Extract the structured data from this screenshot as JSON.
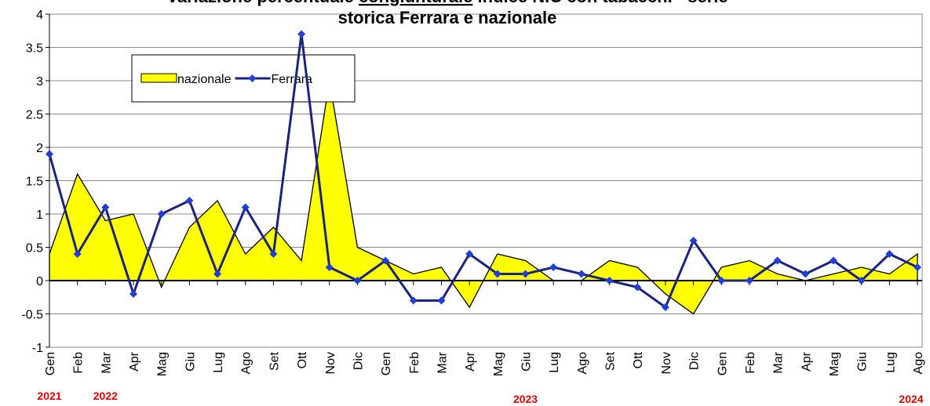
{
  "chart_data": {
    "type": "area-line",
    "title": {
      "before": "Variazione percentuale",
      "underlined": "congiunturale",
      "after": "indice NIC con tabacchi - serie",
      "line2": "storica Ferrara e nazionale"
    },
    "categories": [
      "Gen",
      "Feb",
      "Mar",
      "Apr",
      "Mag",
      "Giu",
      "Lug",
      "Ago",
      "Set",
      "Ott",
      "Nov",
      "Dic",
      "Gen",
      "Feb",
      "Mar",
      "Apr",
      "Mag",
      "Giu",
      "Lug",
      "Ago",
      "Set",
      "Ott",
      "Nov",
      "Dic",
      "Gen",
      "Feb",
      "Mar",
      "Apr",
      "Mag",
      "Giu",
      "Lug",
      "Ago"
    ],
    "year_labels": [
      "2021",
      null,
      "2022",
      null,
      null,
      null,
      null,
      null,
      null,
      null,
      null,
      null,
      null,
      null,
      null,
      null,
      null,
      "2023",
      null,
      null,
      null,
      null,
      null,
      null,
      null,
      null,
      null,
      null,
      null,
      null,
      null,
      "2024"
    ],
    "series": [
      {
        "name": "nazionale",
        "kind": "area",
        "color": "#ffff00",
        "values": [
          0.4,
          1.6,
          0.9,
          1.0,
          -0.1,
          0.8,
          1.2,
          0.4,
          0.8,
          0.3,
          3.0,
          0.5,
          0.3,
          0.1,
          0.2,
          -0.4,
          0.4,
          0.3,
          0.0,
          0.0,
          0.3,
          0.2,
          -0.2,
          -0.5,
          0.2,
          0.3,
          0.1,
          0.0,
          0.1,
          0.2,
          0.1,
          0.4
        ]
      },
      {
        "name": "Ferrara",
        "kind": "line",
        "color": "#1a237e",
        "values": [
          1.9,
          0.4,
          1.1,
          -0.2,
          1.0,
          1.2,
          0.1,
          1.1,
          0.4,
          3.7,
          0.2,
          0.0,
          0.3,
          -0.3,
          -0.3,
          0.4,
          0.1,
          0.1,
          0.2,
          0.1,
          0.0,
          -0.1,
          -0.4,
          0.6,
          0.0,
          0.0,
          0.3,
          0.1,
          0.3,
          0.0,
          0.4,
          0.2
        ]
      }
    ],
    "ylim": [
      -1,
      4
    ],
    "yticks": [
      -1,
      -0.5,
      0,
      0.5,
      1,
      1.5,
      2,
      2.5,
      3,
      3.5,
      4
    ],
    "grid": true
  }
}
